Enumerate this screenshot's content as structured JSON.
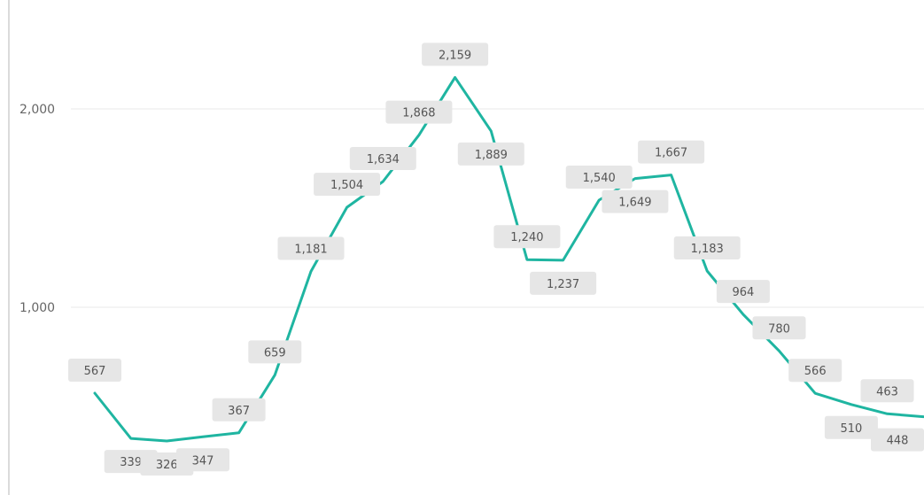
{
  "chart_data": {
    "type": "line",
    "title": "",
    "xlabel": "",
    "ylabel": "",
    "ylim": [
      0,
      2400
    ],
    "y_ticks": [
      1000,
      2000
    ],
    "y_tick_labels": [
      "1,000",
      "2,000"
    ],
    "grid": true,
    "series": [
      {
        "color": "#1fb5a1",
        "values": [
          567,
          339,
          326,
          347,
          367,
          659,
          1181,
          1504,
          1634,
          1868,
          2159,
          1889,
          1240,
          1237,
          1540,
          1649,
          1667,
          1183,
          964,
          780,
          566,
          510,
          463,
          448
        ],
        "value_labels": [
          "567",
          "339",
          "326",
          "347",
          "367",
          "659",
          "1,181",
          "1,504",
          "1,634",
          "1,868",
          "2,159",
          "1,889",
          "1,240",
          "1,237",
          "1,540",
          "1,649",
          "1,667",
          "1,183",
          "964",
          "780",
          "566",
          "510",
          "463",
          "448"
        ]
      }
    ]
  }
}
